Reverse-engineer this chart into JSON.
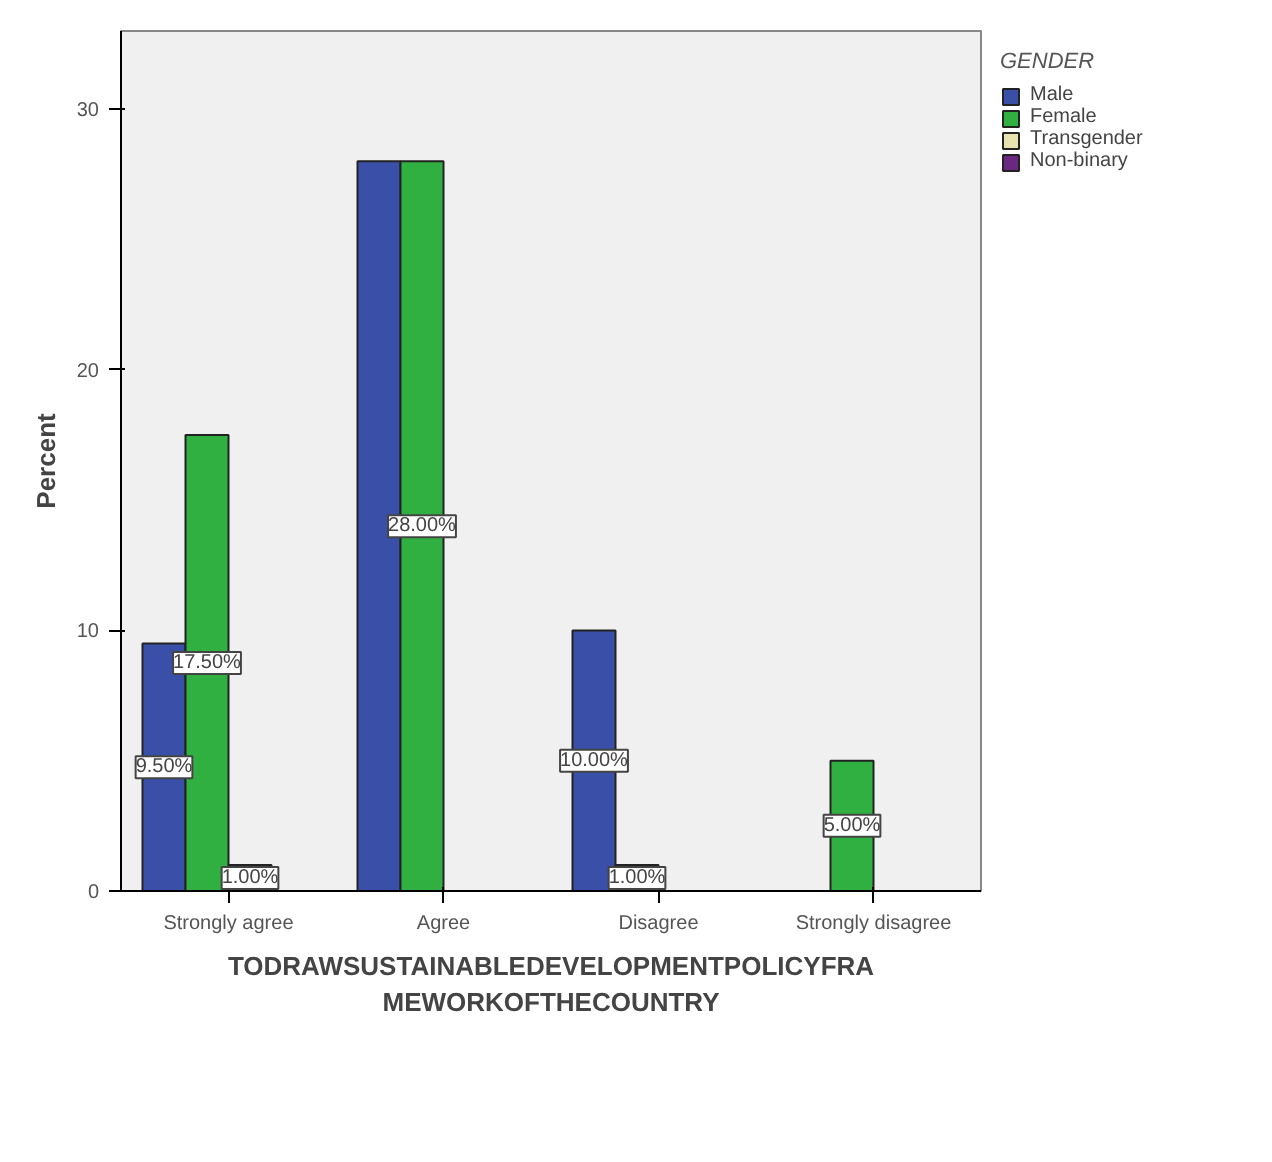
{
  "chart_data": {
    "type": "bar",
    "xlabel": "TODRAWSUSTAINABLEDEVELOPMENTPOLICYFRA\nMEWORKOFTHECOUNTRY",
    "ylabel": "Percent",
    "legend_title": "GENDER",
    "categories": [
      "Strongly agree",
      "Agree",
      "Disagree",
      "Strongly disagree"
    ],
    "series": [
      {
        "name": "Male",
        "color": "#3a50a8",
        "values": [
          9.5,
          28.0,
          10.0,
          null
        ],
        "value_labels": [
          "9.50%",
          null,
          "10.00%",
          null
        ]
      },
      {
        "name": "Female",
        "color": "#30b040",
        "values": [
          17.5,
          28.0,
          1.0,
          5.0
        ],
        "value_labels": [
          "17.50%",
          "28.00%",
          "1.00%",
          "5.00%"
        ]
      },
      {
        "name": "Transgender",
        "color": "#e8e2b0",
        "values": [
          1.0,
          null,
          null,
          null
        ],
        "value_labels": [
          "1.00%",
          null,
          null,
          null
        ]
      },
      {
        "name": "Non-binary",
        "color": "#6a2880",
        "values": [
          null,
          null,
          null,
          null
        ],
        "value_labels": [
          null,
          null,
          null,
          null
        ]
      }
    ],
    "ylim": [
      0,
      33
    ],
    "yticks": [
      0,
      10,
      20,
      30
    ],
    "grid": false,
    "legend": "right"
  }
}
